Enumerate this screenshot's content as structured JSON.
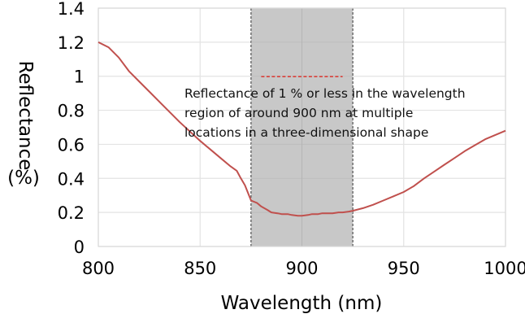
{
  "chart_data": {
    "type": "line",
    "title": "",
    "xlabel": "Wavelength (nm)",
    "ylabel_lines": [
      "Reflectance",
      "(%)"
    ],
    "xlim": [
      800,
      1000
    ],
    "ylim": [
      0,
      1.4
    ],
    "x_ticks": [
      800,
      850,
      900,
      950,
      1000
    ],
    "x_tick_labels": [
      "800",
      "850",
      "900",
      "950",
      "1000"
    ],
    "y_ticks": [
      0,
      0.2,
      0.4,
      0.6,
      0.8,
      1,
      1.2,
      1.4
    ],
    "y_tick_labels": [
      "0",
      "0.2",
      "0.4",
      "0.6",
      "0.8",
      "1",
      "1.2",
      "1.4"
    ],
    "grid": true,
    "series": [
      {
        "name": "Reflectance",
        "color": "#c0504d",
        "x": [
          800,
          805,
          810,
          815,
          820,
          825,
          830,
          835,
          840,
          845,
          850,
          855,
          860,
          865,
          868,
          870,
          872,
          875,
          878,
          880,
          883,
          885,
          888,
          890,
          893,
          895,
          898,
          900,
          903,
          905,
          908,
          910,
          913,
          915,
          918,
          920,
          923,
          925,
          930,
          935,
          940,
          945,
          950,
          955,
          960,
          965,
          970,
          975,
          980,
          985,
          990,
          995,
          1000
        ],
        "y": [
          1.2,
          1.17,
          1.11,
          1.03,
          0.97,
          0.91,
          0.85,
          0.79,
          0.73,
          0.675,
          0.62,
          0.57,
          0.52,
          0.47,
          0.445,
          0.4,
          0.36,
          0.27,
          0.255,
          0.235,
          0.215,
          0.2,
          0.195,
          0.19,
          0.19,
          0.185,
          0.18,
          0.18,
          0.185,
          0.19,
          0.19,
          0.195,
          0.195,
          0.195,
          0.2,
          0.2,
          0.205,
          0.21,
          0.225,
          0.245,
          0.27,
          0.295,
          0.32,
          0.355,
          0.4,
          0.44,
          0.48,
          0.52,
          0.56,
          0.595,
          0.63,
          0.655,
          0.68
        ]
      }
    ],
    "shaded_region": {
      "x_start": 875,
      "x_end": 925,
      "color": "#c8c8c8"
    },
    "annotation": {
      "marker": "red dashed line",
      "marker_color": "#d9403a",
      "marker_x": [
        880,
        920
      ],
      "marker_y": 1.0,
      "lines": [
        "Reflectance of 1 % or less in the wavelength",
        "region of around 900 nm at multiple",
        "locations in a three-dimensional shape"
      ]
    },
    "legend": "none"
  }
}
